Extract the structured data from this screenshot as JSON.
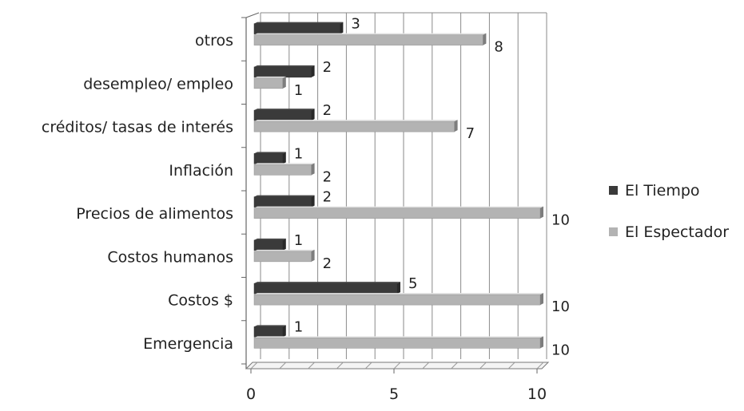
{
  "chart_data": {
    "type": "bar",
    "orientation": "horizontal",
    "style": "3d",
    "categories": [
      "otros",
      "desempleo/ empleo",
      "créditos/ tasas de interés",
      "Inflación",
      "Precios de alimentos",
      "Costos humanos",
      "Costos  $",
      "Emergencia"
    ],
    "series": [
      {
        "name": "El Tiempo",
        "color": "#3a3a3a",
        "values": [
          3,
          2,
          2,
          1,
          2,
          1,
          5,
          1
        ]
      },
      {
        "name": "El Espectador",
        "color": "#b3b3b3",
        "values": [
          8,
          1,
          7,
          2,
          10,
          2,
          10,
          10
        ]
      }
    ],
    "xlim": [
      0,
      10
    ],
    "x_ticks": [
      "0",
      "5",
      "10"
    ],
    "grid": true,
    "legend_position": "right",
    "data_labels": true,
    "title": "",
    "xlabel": "",
    "ylabel": ""
  }
}
